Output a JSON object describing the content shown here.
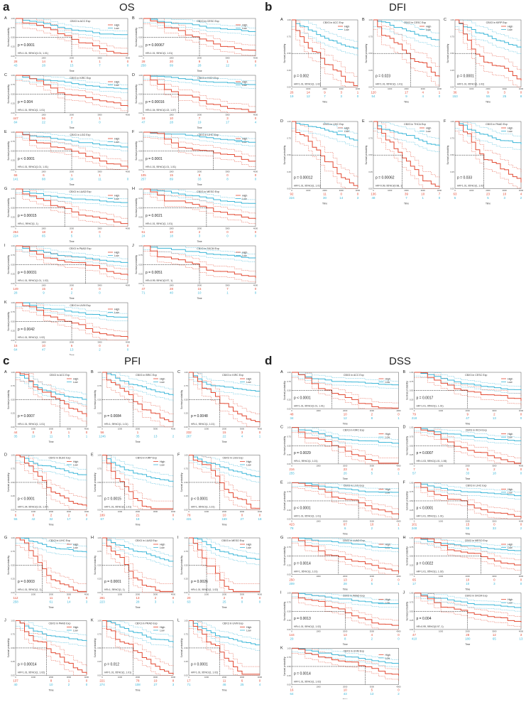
{
  "panels": [
    {
      "letter": "a",
      "title": "OS",
      "cols": 2,
      "plots": [
        {
          "id": "A",
          "title": "CBX3 in ACC Exp",
          "p": "p = 0.0001",
          "hr": "HR=1.01, 95%CI(1.01, 1.01)",
          "rows": [
            [
              "28",
              "14",
              "6",
              "1",
              "0"
            ],
            [
              "43",
              "28",
              "15",
              "7",
              "0"
            ]
          ]
        },
        {
          "id": "B",
          "title": "CBX3 in CESC Exp",
          "p": "p = 0.00067",
          "hr": "HR=1.01, 95%CI(1, 1.01)",
          "rows": [
            [
              "28",
              "20",
              "9",
              "1",
              "0"
            ],
            [
              "258",
              "99",
              "28",
              "12",
              "0"
            ]
          ]
        },
        {
          "id": "C",
          "title": "CBX3 in KIRC Exp",
          "p": "p = 0.004",
          "hr": "HR=1.01, 95%CI(1, 1.01)",
          "rows": [
            [
              "447",
              "56",
              "7",
              "1",
              ""
            ],
            [
              "84",
              "22",
              "3",
              "0",
              ""
            ]
          ]
        },
        {
          "id": "D",
          "title": "CBX3 in KICH Exp",
          "p": "p = 0.00016",
          "hr": "HR=1.04, 95%CI(1.02, 1.07)",
          "rows": [
            [
              "18",
              "10",
              "7",
              "3",
              "0"
            ],
            [
              "47",
              "28",
              "19",
              "17",
              "4"
            ]
          ]
        },
        {
          "id": "E",
          "title": "CBX3 in LGG Exp",
          "p": "p < 0.0001",
          "hr": "HR=1.01, 95%CI(1.01, 1.01)",
          "rows": [
            [
              "66",
              "6",
              "1",
              "1",
              ""
            ],
            [
              "141",
              "88",
              "34",
              "11",
              "0"
            ]
          ]
        },
        {
          "id": "F",
          "title": "CBX3 in LIHC Exp",
          "p": "p = 0.0001",
          "hr": "HR=1.01, 95%CI(1.01, 1.01)",
          "rows": [
            [
              "105",
              "15",
              "8",
              "0",
              "0"
            ],
            [
              "257",
              "89",
              "33",
              "8",
              "0"
            ]
          ]
        },
        {
          "id": "G",
          "title": "CBX3 in LUAD Exp",
          "p": "p = 0.00015",
          "hr": "HR=1, 95%CI(1, 1)",
          "rows": [
            [
              "254",
              "18",
              "3",
              "0",
              ""
            ],
            [
              "224",
              "65",
              "5",
              "1",
              ""
            ]
          ]
        },
        {
          "id": "H",
          "title": "CBX3 in MESO Exp",
          "p": "p = 0.0021",
          "hr": "HR=1.01, 95%CI(1, 1.01)",
          "rows": [
            [
              "61",
              "10",
              "2",
              "0",
              "0"
            ],
            [
              "24",
              "18",
              "3",
              "0",
              "0"
            ]
          ]
        },
        {
          "id": "I",
          "title": "CBX3 in PAAD Exp",
          "p": "p = 0.00031",
          "hr": "HR=1.01, 95%CI(1.01, 1.02)",
          "rows": [
            [
              "149",
              "15",
              "4",
              "0",
              ""
            ],
            [
              "28",
              "9",
              "2",
              "0",
              ""
            ]
          ]
        },
        {
          "id": "J",
          "title": "CBX3 in SKCM Exp",
          "p": "p = 0.0051",
          "hr": "HR=0.99, 95%CI(0.97, 1)",
          "rows": [
            [
              "47",
              "28",
              "15",
              "7",
              "0"
            ],
            [
              "71",
              "40",
              "10",
              "1",
              "0"
            ]
          ]
        },
        {
          "id": "K",
          "title": "CBX3 in UVM Exp",
          "p": "p = 0.0042",
          "hr": "HR=1.01, 95%CI(1, 1.02)",
          "rows": [
            [
              "16",
              "10",
              "6",
              "0",
              "0"
            ],
            [
              "64",
              "47",
              "13",
              "2",
              "0"
            ]
          ]
        }
      ]
    },
    {
      "letter": "b",
      "title": "DFI",
      "cols": 3,
      "plots": [
        {
          "id": "A",
          "title": "CBX3 in ACC Exp",
          "p": "p = 0.002",
          "hr": "HR=1.01, 95%CI(1, 1.02)",
          "rows": [
            [
              "26",
              "14",
              "9",
              "3",
              "1"
            ],
            [
              "19",
              "12",
              "7",
              "3",
              "0"
            ]
          ]
        },
        {
          "id": "B",
          "title": "CBX3 in CESC Exp",
          "p": "p = 0.023",
          "hr": "HR=1.01, 95%CI(1, 1.01)",
          "rows": [
            [
              "120",
              "",
              "17",
              "4",
              "1"
            ],
            [
              "54",
              "",
              "9",
              "4",
              "0"
            ]
          ]
        },
        {
          "id": "C",
          "title": "CBX3 in KIRP Exp",
          "p": "p = 0.0001",
          "hr": "HR=1.01, 95%CI(1, 1.02)",
          "rows": [
            [
              "36",
              "",
              "9",
              "3",
              "0"
            ],
            [
              "153",
              "",
              "55",
              "25",
              "8"
            ]
          ]
        },
        {
          "id": "D",
          "title": "CBX3 in LIHC Exp",
          "p": "p = 0.00012",
          "hr": "HR=1.01, 95%CI(1, 1.01)",
          "rows": [
            [
              "92",
              "",
              "11",
              "0",
              "0"
            ],
            [
              "224",
              "",
              "30",
              "14",
              "3"
            ]
          ]
        },
        {
          "id": "E",
          "title": "CBX3 in THCA Exp",
          "p": "p = 0.00062",
          "hr": "HR=0.99, 95%CI(0.98, 1)",
          "rows": [
            [
              "136",
              "",
              "39",
              "10",
              "7"
            ],
            [
              "48",
              "",
              "7",
              "1",
              "0"
            ]
          ]
        },
        {
          "id": "F",
          "title": "CBX3 in PAAD Exp",
          "p": "p = 0.033",
          "hr": "HR=1.01, 95%CI(1, 1.02)",
          "rows": [
            [
              "63",
              "",
              "23",
              "10",
              "4"
            ],
            [
              "6",
              "",
              "5",
              "3",
              "2"
            ]
          ]
        }
      ]
    },
    {
      "letter": "c",
      "title": "PFI",
      "cols": 3,
      "plots": [
        {
          "id": "A",
          "title": "CBX3 in ACC Exp",
          "p": "p = 0.0007",
          "hr": "HR=1.01, 95%CI(1, 1.01)",
          "rows": [
            [
              "44",
              "0",
              "3",
              "1",
              "0"
            ],
            [
              "35",
              "19",
              "11",
              "5",
              "1"
            ]
          ]
        },
        {
          "id": "B",
          "title": "CBX3 in BRIC Exp",
          "p": "p = 0.0084",
          "hr": "HR=1, 95%CI(1, 1.01)",
          "rows": [
            [
              "56",
              "",
              "1",
              "",
              ""
            ],
            [
              "1246",
              "",
              "35",
              "13",
              "2"
            ]
          ]
        },
        {
          "id": "C",
          "title": "CBX3 in KIRC Exp",
          "p": "p = 0.0048",
          "hr": "HR=1, 95%CI(1, 1.01)",
          "rows": [
            [
              "232",
              "",
              "15",
              "3",
              "0"
            ],
            [
              "267",
              "",
              "22",
              "4",
              "1"
            ]
          ]
        },
        {
          "id": "D",
          "title": "CBX3 in DLBC Exp",
          "p": "p < 0.0001",
          "hr": "HR=1.04, 95%CI(1.02, 1.07)",
          "rows": [
            [
              "6",
              "0",
              "2",
              "2",
              "0"
            ],
            [
              "55",
              "42",
              "32",
              "17",
              "2"
            ]
          ]
        },
        {
          "id": "E",
          "title": "CBX3 in KIRP Exp",
          "p": "p = 0.0015",
          "hr": "HR=1.01, 95%CI(1, 1.01)",
          "rows": [
            [
              "189",
              "",
              "21",
              "",
              "0"
            ],
            [
              "67",
              "",
              "18",
              "",
              "1"
            ]
          ]
        },
        {
          "id": "F",
          "title": "CBX3 in LGG Exp",
          "p": "p < 0.0001",
          "hr": "HR=1, 95%CI(1, 1.01)",
          "rows": [
            [
              "78",
              "",
              "10",
              "0",
              "0"
            ],
            [
              "431",
              "",
              "169",
              "27",
              "18"
            ]
          ]
        },
        {
          "id": "G",
          "title": "CBX3 in LIHC Exp",
          "p": "p = 0.0003",
          "hr": "HR=1.01, 95%CI(1, 1)",
          "rows": [
            [
              "112",
              "",
              "11",
              "0",
              "0"
            ],
            [
              "258",
              "",
              "61",
              "14",
              "3"
            ]
          ]
        },
        {
          "id": "H",
          "title": "CBX3 in LUAD Exp",
          "p": "p = 0.0001",
          "hr": "HR=1, 95%CI(1, 1)",
          "rows": [
            [
              "281",
              "",
              "13",
              "2",
              "0"
            ],
            [
              "223",
              "",
              "28",
              "3",
              "1"
            ]
          ]
        },
        {
          "id": "I",
          "title": "CBX3 in MESO Exp",
          "p": "p = 0.0026",
          "hr": "HR=1.01, 95%CI(1, 1.02)",
          "rows": [
            [
              "20",
              "",
              "2",
              "0",
              "0"
            ],
            [
              "63",
              "",
              "25",
              "0",
              "0"
            ]
          ]
        },
        {
          "id": "J",
          "title": "CBX3 in PAAD Exp",
          "p": "p = 0.00014",
          "hr": "HR=1.01, 95%CI(1, 1.02)",
          "rows": [
            [
              "137",
              "",
              "8",
              "1",
              "0"
            ],
            [
              "40",
              "",
              "10",
              "2",
              "0"
            ]
          ]
        },
        {
          "id": "K",
          "title": "CBX3 in PRAD Exp",
          "p": "p = 0.012",
          "hr": "HR=1.01, 95%CI(1, 1.01)",
          "rows": [
            [
              "221",
              "",
              "78",
              "19",
              "8"
            ],
            [
              "274",
              "",
              "108",
              "27",
              "3"
            ]
          ]
        },
        {
          "id": "L",
          "title": "CBX3 in UVM Exp",
          "p": "p = 0.0001",
          "hr": "HR=1.01, 95%CI(1, 1.02)",
          "rows": [
            [
              "17",
              "",
              "11",
              "6",
              "0"
            ],
            [
              "71",
              "",
              "46",
              "25",
              "4"
            ]
          ]
        }
      ]
    },
    {
      "letter": "d",
      "title": "DSS",
      "cols": 2,
      "plots": [
        {
          "id": "A",
          "title": "CBX3 in ACC Exp",
          "p": "p < 0.0001",
          "hr": "HR=1.01, 95%CI(1.01, 1.01)",
          "rows": [
            [
              "48",
              "",
              "10",
              "2",
              "0"
            ],
            [
              "34",
              "",
              "12",
              "8",
              "1"
            ]
          ]
        },
        {
          "id": "B",
          "title": "CBX3 in CESC Exp",
          "p": "p = 0.0017",
          "hr": "HR=1.01, 95%CI(1, 1.01)",
          "rows": [
            [
              "79",
              "",
              "9",
              "2",
              "0"
            ],
            [
              "218",
              "",
              "47",
              "13",
              "0"
            ]
          ]
        },
        {
          "id": "C",
          "title": "CBX3 in KIRC Exp",
          "p": "p = 0.0029",
          "hr": "HR=1, 95%CI(1, 1.01)",
          "rows": [
            [
              "216",
              "",
              "23",
              "4",
              "0"
            ],
            [
              "255",
              "",
              "26",
              "5",
              "1"
            ]
          ]
        },
        {
          "id": "D",
          "title": "CBX3 in KICH Exp",
          "p": "p = 0.0007",
          "hr": "HR=1.03, 95%CI(1.01, 1.06)",
          "rows": [
            [
              "7",
              "",
              "5",
              "2",
              "0"
            ],
            [
              "57",
              "",
              "33",
              "18",
              "0"
            ]
          ]
        },
        {
          "id": "E",
          "title": "CBX3 in LGG Exp",
          "p": "p < 0.0001",
          "hr": "HR=1.01, 95%CI(1, 1.01)",
          "rows": [
            [
              "423",
              "",
              "67",
              "10",
              "1"
            ],
            [
              "78",
              "",
              "6",
              "2",
              "1"
            ]
          ]
        },
        {
          "id": "F",
          "title": "CBX3 in LIHC Exp",
          "p": "p < 0.0001",
          "hr": "HR=1.01, 95%CI(1, 1.01)",
          "rows": [
            [
              "101",
              "",
              "15",
              "0",
              "0"
            ],
            [
              "248",
              "",
              "55",
              "33",
              "2"
            ]
          ]
        },
        {
          "id": "G",
          "title": "CBX3 in LUAD Exp",
          "p": "p = 0.0014",
          "hr": "HR=1, 95%CI(1, 1.01)",
          "rows": [
            [
              "250",
              "",
              "13",
              "2",
              "0"
            ],
            [
              "209",
              "",
              "28",
              "5",
              "1"
            ]
          ]
        },
        {
          "id": "H",
          "title": "CBX3 in MESO Exp",
          "p": "p = 0.0022",
          "hr": "HR=1.01, 95%CI(1, 1.02)",
          "rows": [
            [
              "65",
              "",
              "10",
              "0",
              "0"
            ],
            [
              "17",
              "",
              "10",
              "3",
              "0"
            ]
          ]
        },
        {
          "id": "I",
          "title": "CBX3 in PAAD Exp",
          "p": "p = 0.0013",
          "hr": "HR=1.01, 95%CI(1, 1.02)",
          "rows": [
            [
              "144",
              "",
              "13",
              "4",
              "0"
            ],
            [
              "29",
              "",
              "8",
              "2",
              "0"
            ]
          ]
        },
        {
          "id": "J",
          "title": "CBX3 in SKCM Exp",
          "p": "p = 0.004",
          "hr": "HR=0.99, 95%CI(0.97, 1)",
          "rows": [
            [
              "47",
              "",
              "28",
              "12",
              "3"
            ],
            [
              "410",
              "",
              "180",
              "65",
              "13"
            ]
          ]
        },
        {
          "id": "K",
          "title": "CBX3 in UVM Exp",
          "p": "p = 0.0014",
          "hr": "HR=1.01, 95%CI(1, 1.02)",
          "rows": [
            [
              "16",
              "",
              "10",
              "5",
              "0"
            ],
            [
              "64",
              "",
              "43",
              "13",
              "2"
            ]
          ]
        }
      ]
    }
  ],
  "common": {
    "legend_high": "High",
    "legend_low": "Low",
    "y_label": "Survival probability",
    "x_label": "Time",
    "x_ticks": [
      "0",
      "1000",
      "2000",
      "3000",
      "4000"
    ],
    "y_ticks": [
      "0.00",
      "0.25",
      "0.50",
      "0.75",
      "1.00"
    ],
    "colors": {
      "high": "#e24a33",
      "low": "#3bb6d8"
    }
  }
}
